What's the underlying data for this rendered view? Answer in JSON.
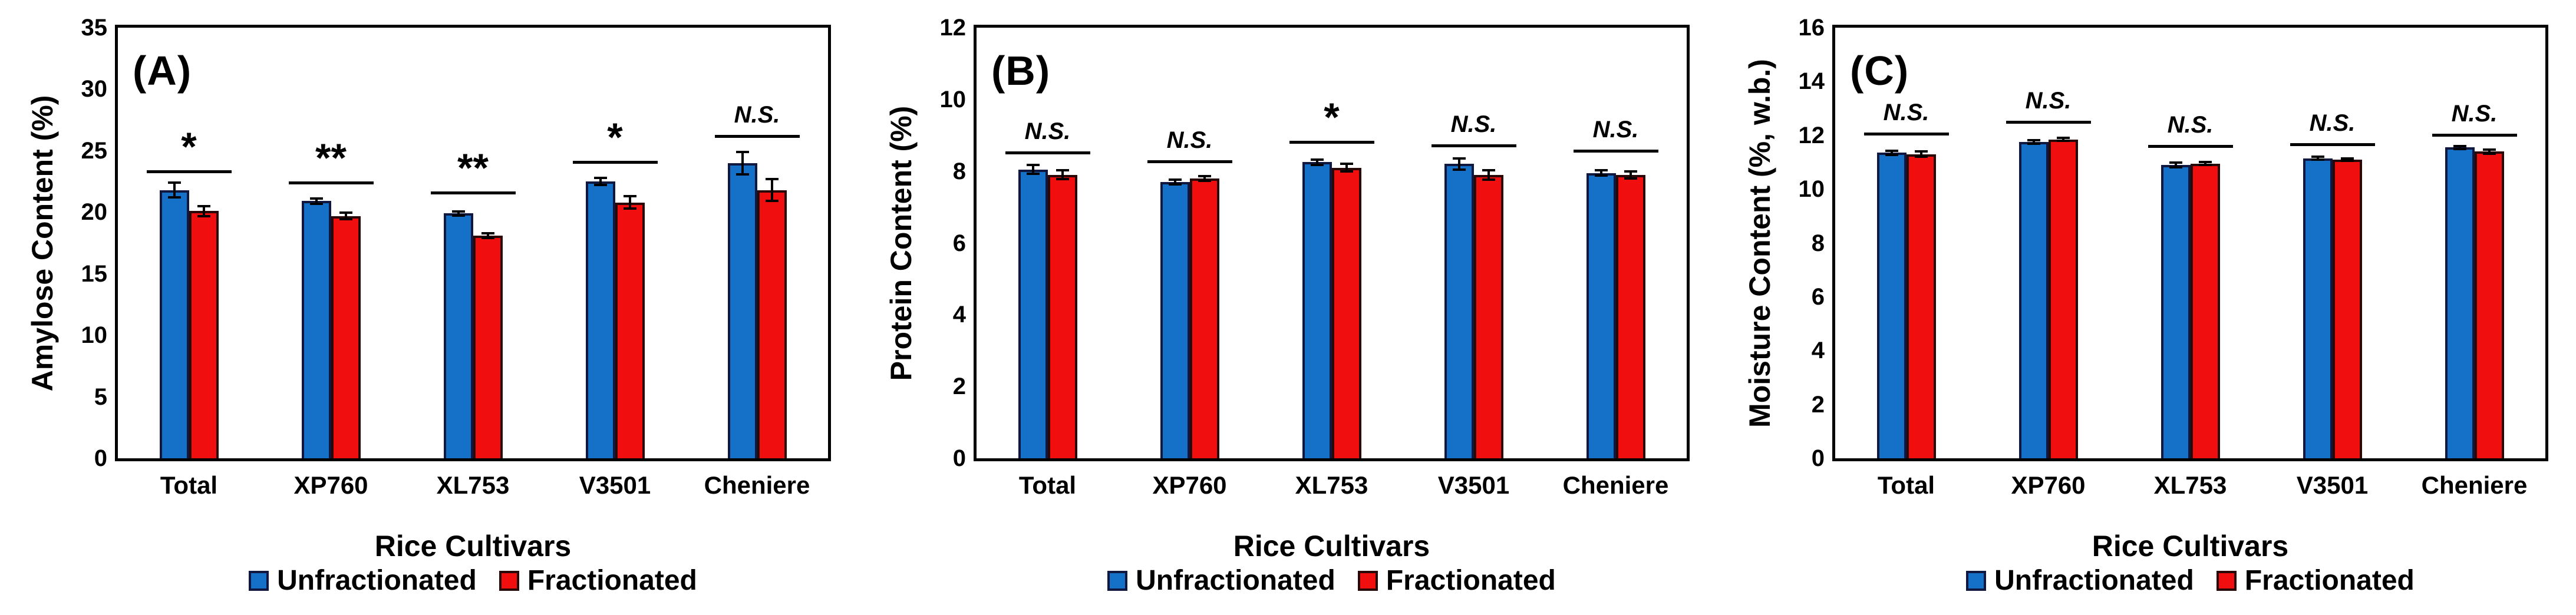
{
  "figure": {
    "xlabel": "Rice Cultivars",
    "categories": [
      "Total",
      "XP760",
      "XL753",
      "V3501",
      "Cheniere"
    ],
    "legend": [
      {
        "label": "Unfractionated",
        "color": "#1571C8",
        "border": "#101840"
      },
      {
        "label": "Fractionated",
        "color": "#F10E0E",
        "border": "#2A0808"
      }
    ]
  },
  "chart_data": [
    {
      "type": "bar",
      "panel_label": "(A)",
      "ylabel": "Amylose Content (%)",
      "xlabel": "Rice Cultivars",
      "ylim": [
        0,
        35
      ],
      "ytick_step": 5,
      "grid": false,
      "legend_position": "bottom",
      "categories": [
        "Total",
        "XP760",
        "XL753",
        "V3501",
        "Cheniere"
      ],
      "series": [
        {
          "name": "Unfractionated",
          "color": "#1571C8",
          "border": "#101840",
          "values": [
            21.8,
            20.9,
            19.9,
            22.5,
            24.0
          ],
          "errors": [
            0.6,
            0.2,
            0.15,
            0.3,
            0.9
          ]
        },
        {
          "name": "Fractionated",
          "color": "#F10E0E",
          "border": "#2A0808",
          "values": [
            20.1,
            19.7,
            18.1,
            20.8,
            21.8
          ],
          "errors": [
            0.4,
            0.25,
            0.2,
            0.5,
            0.9
          ]
        }
      ],
      "significance": [
        {
          "label": "*",
          "y": 23.4
        },
        {
          "label": "**",
          "y": 22.5
        },
        {
          "label": "**",
          "y": 21.7
        },
        {
          "label": "*",
          "y": 24.2
        },
        {
          "label": "N.S.",
          "y": 26.3
        }
      ]
    },
    {
      "type": "bar",
      "panel_label": "(B)",
      "ylabel": "Protein Content (%)",
      "xlabel": "Rice Cultivars",
      "ylim": [
        0,
        12
      ],
      "ytick_step": 2,
      "grid": false,
      "legend_position": "bottom",
      "categories": [
        "Total",
        "XP760",
        "XL753",
        "V3501",
        "Cheniere"
      ],
      "series": [
        {
          "name": "Unfractionated",
          "color": "#1571C8",
          "border": "#101840",
          "values": [
            8.05,
            7.7,
            8.25,
            8.2,
            7.95
          ],
          "errors": [
            0.12,
            0.07,
            0.08,
            0.15,
            0.07
          ]
        },
        {
          "name": "Fractionated",
          "color": "#F10E0E",
          "border": "#2A0808",
          "values": [
            7.9,
            7.8,
            8.1,
            7.9,
            7.9
          ],
          "errors": [
            0.12,
            0.07,
            0.1,
            0.13,
            0.1
          ]
        }
      ],
      "significance": [
        {
          "label": "N.S.",
          "y": 8.55
        },
        {
          "label": "N.S.",
          "y": 8.3
        },
        {
          "label": "*",
          "y": 8.85
        },
        {
          "label": "N.S.",
          "y": 8.75
        },
        {
          "label": "N.S.",
          "y": 8.6
        }
      ]
    },
    {
      "type": "bar",
      "panel_label": "(C)",
      "ylabel": "Moisture Content (%, w.b.)",
      "xlabel": "Rice Cultivars",
      "ylim": [
        0,
        16
      ],
      "ytick_step": 2,
      "grid": false,
      "legend_position": "bottom",
      "categories": [
        "Total",
        "XP760",
        "XL753",
        "V3501",
        "Cheniere"
      ],
      "series": [
        {
          "name": "Unfractionated",
          "color": "#1571C8",
          "border": "#101840",
          "values": [
            11.35,
            11.75,
            10.9,
            11.15,
            11.55
          ],
          "errors": [
            0.08,
            0.06,
            0.08,
            0.05,
            0.05
          ]
        },
        {
          "name": "Fractionated",
          "color": "#F10E0E",
          "border": "#2A0808",
          "values": [
            11.3,
            11.85,
            10.95,
            11.1,
            11.4
          ],
          "errors": [
            0.1,
            0.06,
            0.06,
            0.05,
            0.08
          ]
        }
      ],
      "significance": [
        {
          "label": "N.S.",
          "y": 12.1
        },
        {
          "label": "N.S.",
          "y": 12.55
        },
        {
          "label": "N.S.",
          "y": 11.65
        },
        {
          "label": "N.S.",
          "y": 11.7
        },
        {
          "label": "N.S.",
          "y": 12.05
        }
      ]
    }
  ]
}
